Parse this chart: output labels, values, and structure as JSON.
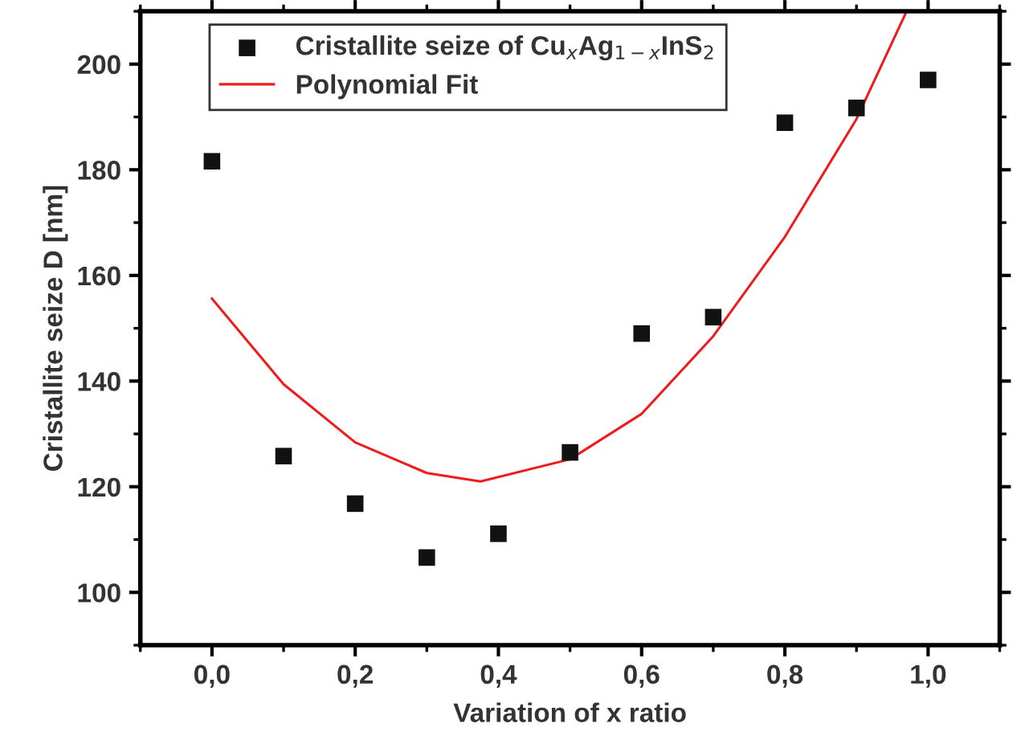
{
  "chart_data": {
    "type": "scatter",
    "xlabel": "Variation of x ratio",
    "ylabel": "Cristallite seize D [nm]",
    "xlim": [
      -0.1,
      1.1
    ],
    "ylim": [
      90,
      210
    ],
    "xticks": [
      {
        "value": 0.0,
        "label": "0,0"
      },
      {
        "value": 0.2,
        "label": "0,2"
      },
      {
        "value": 0.4,
        "label": "0,4"
      },
      {
        "value": 0.6,
        "label": "0,6"
      },
      {
        "value": 0.8,
        "label": "0,8"
      },
      {
        "value": 1.0,
        "label": "1,0"
      }
    ],
    "yticks": [
      100,
      120,
      140,
      160,
      180,
      200
    ],
    "legend": "top left",
    "grid": false,
    "series": [
      {
        "name": "Cristallite seize of Cu$_{x}$Ag$_{1−x}$InS$_{2}$",
        "marker": "square",
        "color": "#111111",
        "x": [
          0.0,
          0.1,
          0.2,
          0.3,
          0.4,
          0.5,
          0.6,
          0.7,
          0.8,
          0.9,
          1.0
        ],
        "values": [
          181.6,
          125.8,
          116.8,
          106.6,
          111.1,
          126.5,
          149.0,
          152.1,
          188.9,
          191.7,
          197.0
        ]
      },
      {
        "name": "Polynomial Fit",
        "type": "line",
        "marker": "none",
        "line_style": "solid",
        "color": "#ee1c1c",
        "x": [
          0.0,
          0.1,
          0.2,
          0.3,
          0.375,
          0.5,
          0.6,
          0.7,
          0.8,
          0.9,
          0.97
        ],
        "values": [
          155.6,
          139.4,
          128.4,
          122.6,
          121.0,
          125.2,
          133.8,
          148.5,
          167.3,
          189.6,
          210.0
        ]
      }
    ]
  }
}
